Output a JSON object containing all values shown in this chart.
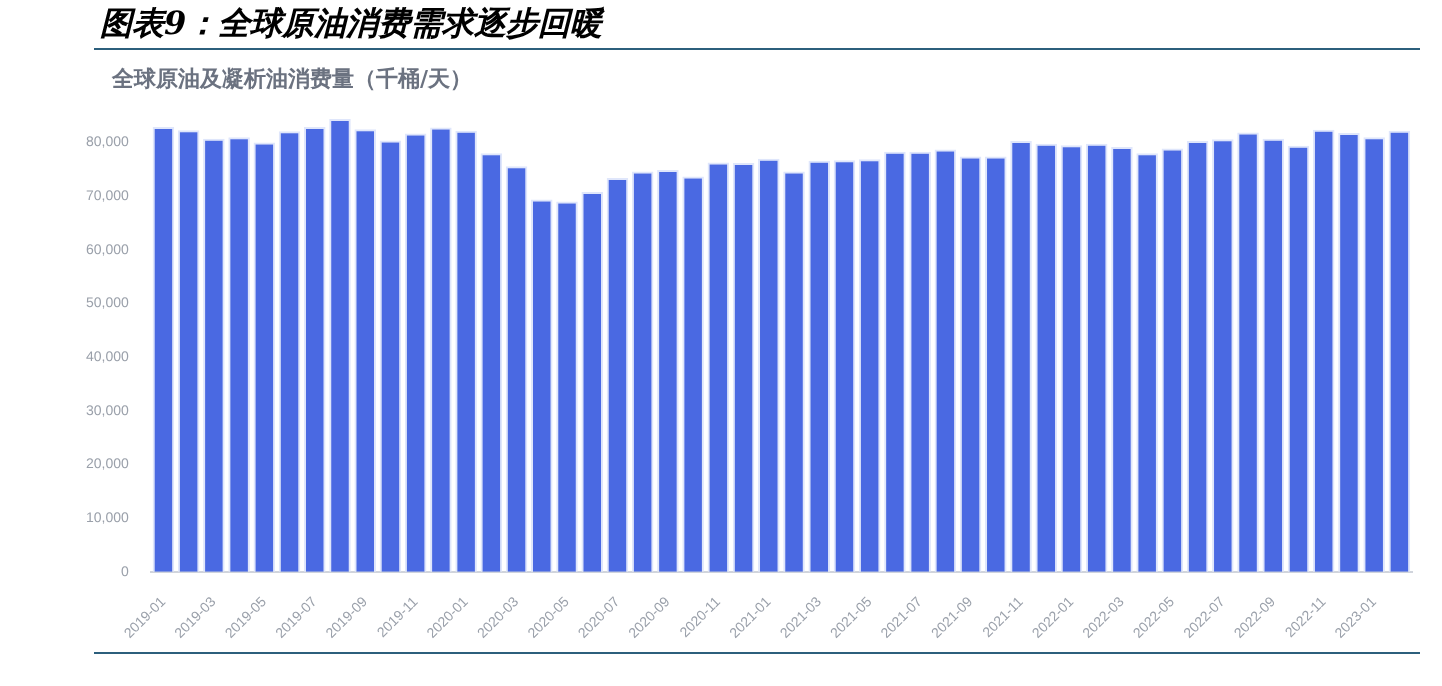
{
  "chart_data": {
    "type": "bar",
    "title": "图表9：全球原油消费需求逐步回暖",
    "subtitle": "全球原油及凝析油消费量（千桶/天）",
    "categories": [
      "2019-01",
      null,
      "2019-03",
      null,
      "2019-05",
      null,
      "2019-07",
      null,
      "2019-09",
      null,
      "2019-11",
      null,
      "2020-01",
      null,
      "2020-03",
      null,
      "2020-05",
      null,
      "2020-07",
      null,
      "2020-09",
      null,
      "2020-11",
      null,
      "2021-01",
      null,
      "2021-03",
      null,
      "2021-05",
      null,
      "2021-07",
      null,
      "2021-09",
      null,
      "2021-11",
      null,
      "2022-01",
      null,
      "2022-03",
      null,
      "2022-05",
      null,
      "2022-07",
      null,
      "2022-09",
      null,
      "2022-11",
      null,
      "2023-01",
      null
    ],
    "values": [
      82900,
      82300,
      80700,
      81000,
      80000,
      82100,
      82900,
      84400,
      82500,
      80400,
      81700,
      82800,
      82200,
      78000,
      75600,
      69400,
      69000,
      70800,
      73400,
      74600,
      74900,
      73700,
      76300,
      76200,
      77000,
      74600,
      76600,
      76700,
      76900,
      78300,
      78300,
      78700,
      77400,
      77400,
      80300,
      79800,
      79500,
      79800,
      79200,
      78000,
      78900,
      80300,
      80600,
      81900,
      80700,
      79400,
      82400,
      81800,
      81000,
      82200
    ],
    "color": "#4a69e2",
    "ylim": [
      0,
      86000
    ],
    "yticks": [
      {
        "value": 0,
        "label": "0"
      },
      {
        "value": 10000,
        "label": "10,000"
      },
      {
        "value": 20000,
        "label": "20,000"
      },
      {
        "value": 30000,
        "label": "30,000"
      },
      {
        "value": 40000,
        "label": "40,000"
      },
      {
        "value": 50000,
        "label": "50,000"
      },
      {
        "value": 60000,
        "label": "60,000"
      },
      {
        "value": 70000,
        "label": "70,000"
      },
      {
        "value": 80000,
        "label": "80,000"
      }
    ],
    "grid": false,
    "legend": false
  }
}
